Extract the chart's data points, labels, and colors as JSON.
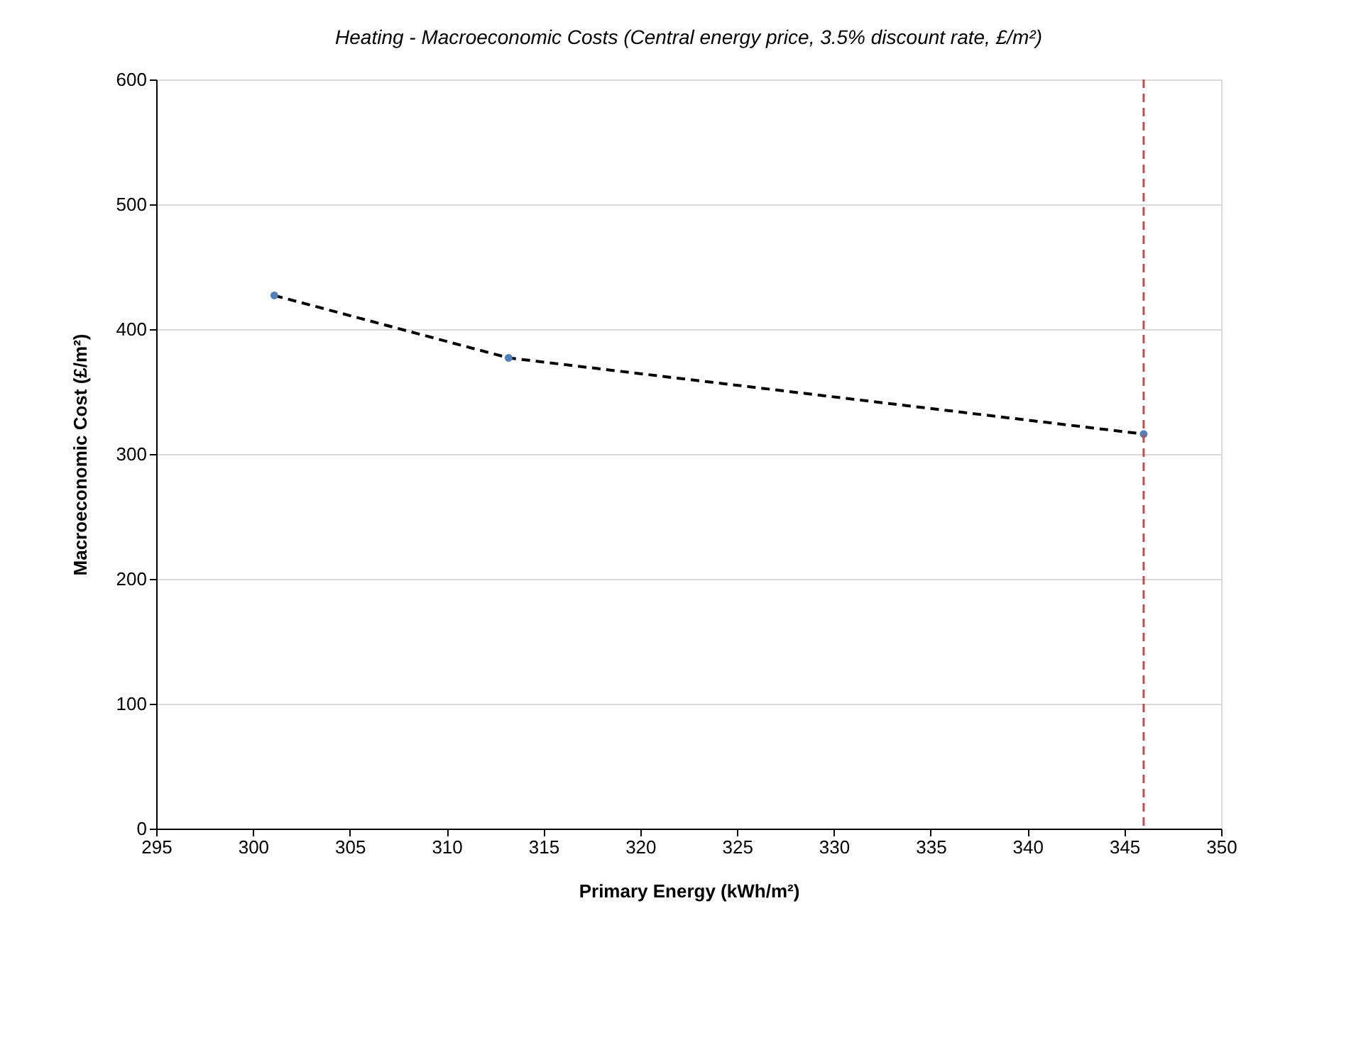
{
  "chart_data": {
    "type": "line",
    "title": "Heating - Macroeconomic Costs (Central energy price, 3.5% discount rate, £/m²)",
    "xlabel": "Primary Energy (kWh/m²)",
    "ylabel": "Macroeconomic Cost (£/m²)",
    "series": [
      {
        "x": [
          301.1,
          313.2,
          346.0
        ],
        "values": [
          427,
          377,
          316
        ],
        "color": "#000000",
        "line_style": "dashed"
      },
      {
        "type": "scatter",
        "x": [
          301.1,
          313.2,
          346.0
        ],
        "values": [
          427,
          377,
          316
        ],
        "color": "#4f81bd",
        "marker": "circle"
      }
    ],
    "xlim": [
      295,
      350
    ],
    "xticks": [
      295,
      300,
      305,
      310,
      315,
      320,
      325,
      330,
      335,
      340,
      345,
      350
    ],
    "ylim": [
      0,
      600
    ],
    "yticks": [
      0,
      100,
      200,
      300,
      400,
      500,
      600
    ],
    "grid": "y",
    "ref_lines": [
      {
        "axis": "x",
        "value": 346.0,
        "label": null,
        "color": "#c0504d",
        "line_style": "dashed"
      }
    ]
  }
}
